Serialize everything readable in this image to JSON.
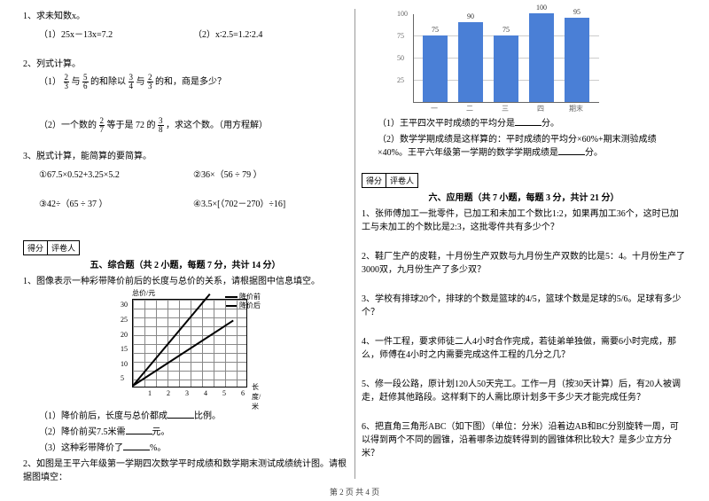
{
  "left": {
    "q1": {
      "stem": "1、求未知数x。",
      "a": "（1）25x－13x=7.2",
      "b": "（2）x∶2.5=1.2∶2.4"
    },
    "q2": {
      "stem": "2、列式计算。",
      "p1_pre": "（1）",
      "p1_a_n": "2",
      "p1_a_d": "3",
      "p1_mid1": "与",
      "p1_b_n": "5",
      "p1_b_d": "6",
      "p1_mid2": "的和除以",
      "p1_c_n": "3",
      "p1_c_d": "4",
      "p1_mid3": "与",
      "p1_d_n": "2",
      "p1_d_d": "3",
      "p1_tail": "的和，商是多少？",
      "p2_pre": "（2）一个数的",
      "p2_a_n": "2",
      "p2_a_d": "7",
      "p2_mid": "等于是 72 的",
      "p2_b_n": "3",
      "p2_b_d": "8",
      "p2_tail": "，求这个数。（用方程解）"
    },
    "q3": {
      "stem": "3、脱式计算，能简算的要简算。",
      "a": "①67.5×0.52+3.25×5.2",
      "b": "②36×（56 ÷ 79 ）",
      "c": "③42÷（65 ÷ 37 ）",
      "d": "④3.5×[（702－270）÷16]"
    },
    "score": {
      "a": "得分",
      "b": "评卷人"
    },
    "sec5_title": "五、综合题（共 2 小题，每题 7 分，共计 14 分）",
    "c1": {
      "stem": "1、图像表示一种彩带降价前后的长度与总价的关系，请根据图中信息填空。",
      "legend_a": "降价前",
      "legend_b": "降价后",
      "y_title": "总价/元",
      "x_title": "长度/米",
      "y_ticks": [
        "5",
        "10",
        "15",
        "20",
        "25",
        "30"
      ],
      "x_ticks": [
        "1",
        "2",
        "3",
        "4",
        "5",
        "6"
      ],
      "a": "（1）降价前后，长度与总价都成",
      "a2": "比例。",
      "b": "（2）降价前买7.5米需",
      "b2": "元。",
      "c": "（3）这种彩带降价了",
      "c2": "%。"
    },
    "c2": "2、如图是王平六年级第一学期四次数学平时成绩和数学期末测试成绩统计图。请根据图填空："
  },
  "right": {
    "bar": {
      "y_ticks": [
        "25",
        "50",
        "75",
        "100"
      ],
      "bars": [
        {
          "label": "一",
          "value": 75,
          "color": "#4a7fd6"
        },
        {
          "label": "二",
          "value": 90,
          "color": "#4a7fd6"
        },
        {
          "label": "三",
          "value": 75,
          "color": "#4a7fd6"
        },
        {
          "label": "四",
          "value": 100,
          "color": "#4a7fd6"
        },
        {
          "label": "期末",
          "value": 95,
          "color": "#4a7fd6"
        }
      ]
    },
    "c2a": "（1）王平四次平时成绩的平均分是",
    "c2a2": "分。",
    "c2b": "（2）数学学期成绩是这样算的：平时成绩的平均分×60%+期末测验成绩×40%。王平六年级第一学期的数学学期成绩是",
    "c2b2": "分。",
    "score": {
      "a": "得分",
      "b": "评卷人"
    },
    "sec6_title": "六、应用题（共 7 小题，每题 3 分，共计 21 分）",
    "a1": "1、张师傅加工一批零件，已加工和未加工个数比1:2，如果再加工36个，这时已加工与未加工的个数比是2:3，这批零件共有多少个？",
    "a2": "2、鞋厂生产的皮鞋，十月份生产双数与九月份生产双数的比是5：4。十月份生产了3000双，九月份生产了多少双？",
    "a3": "3、学校有排球20个，排球的个数是篮球的4/5，篮球个数是足球的5/6。足球有多少个？",
    "a4": "4、一件工程，要求师徒二人4小时合作完成，若徒弟单独做，需要6小时完成，那么，师傅在4小时之内需要完成这件工程的几分之几？",
    "a5": "5、修一段公路，原计划120人50天完工。工作一月（按30天计算）后，有20人被调走，赶修其他路段。这样剩下的人需比原计划多干多少天才能完成任务？",
    "a6": "6、把直角三角形ABC（如下图）（单位：分米）沿着边AB和BC分别旋转一周，可以得到两个不同的圆锥，沿着哪条边旋转得到的圆锥体积比较大？是多少立方分米？"
  },
  "footer": "第 2 页 共 4 页"
}
